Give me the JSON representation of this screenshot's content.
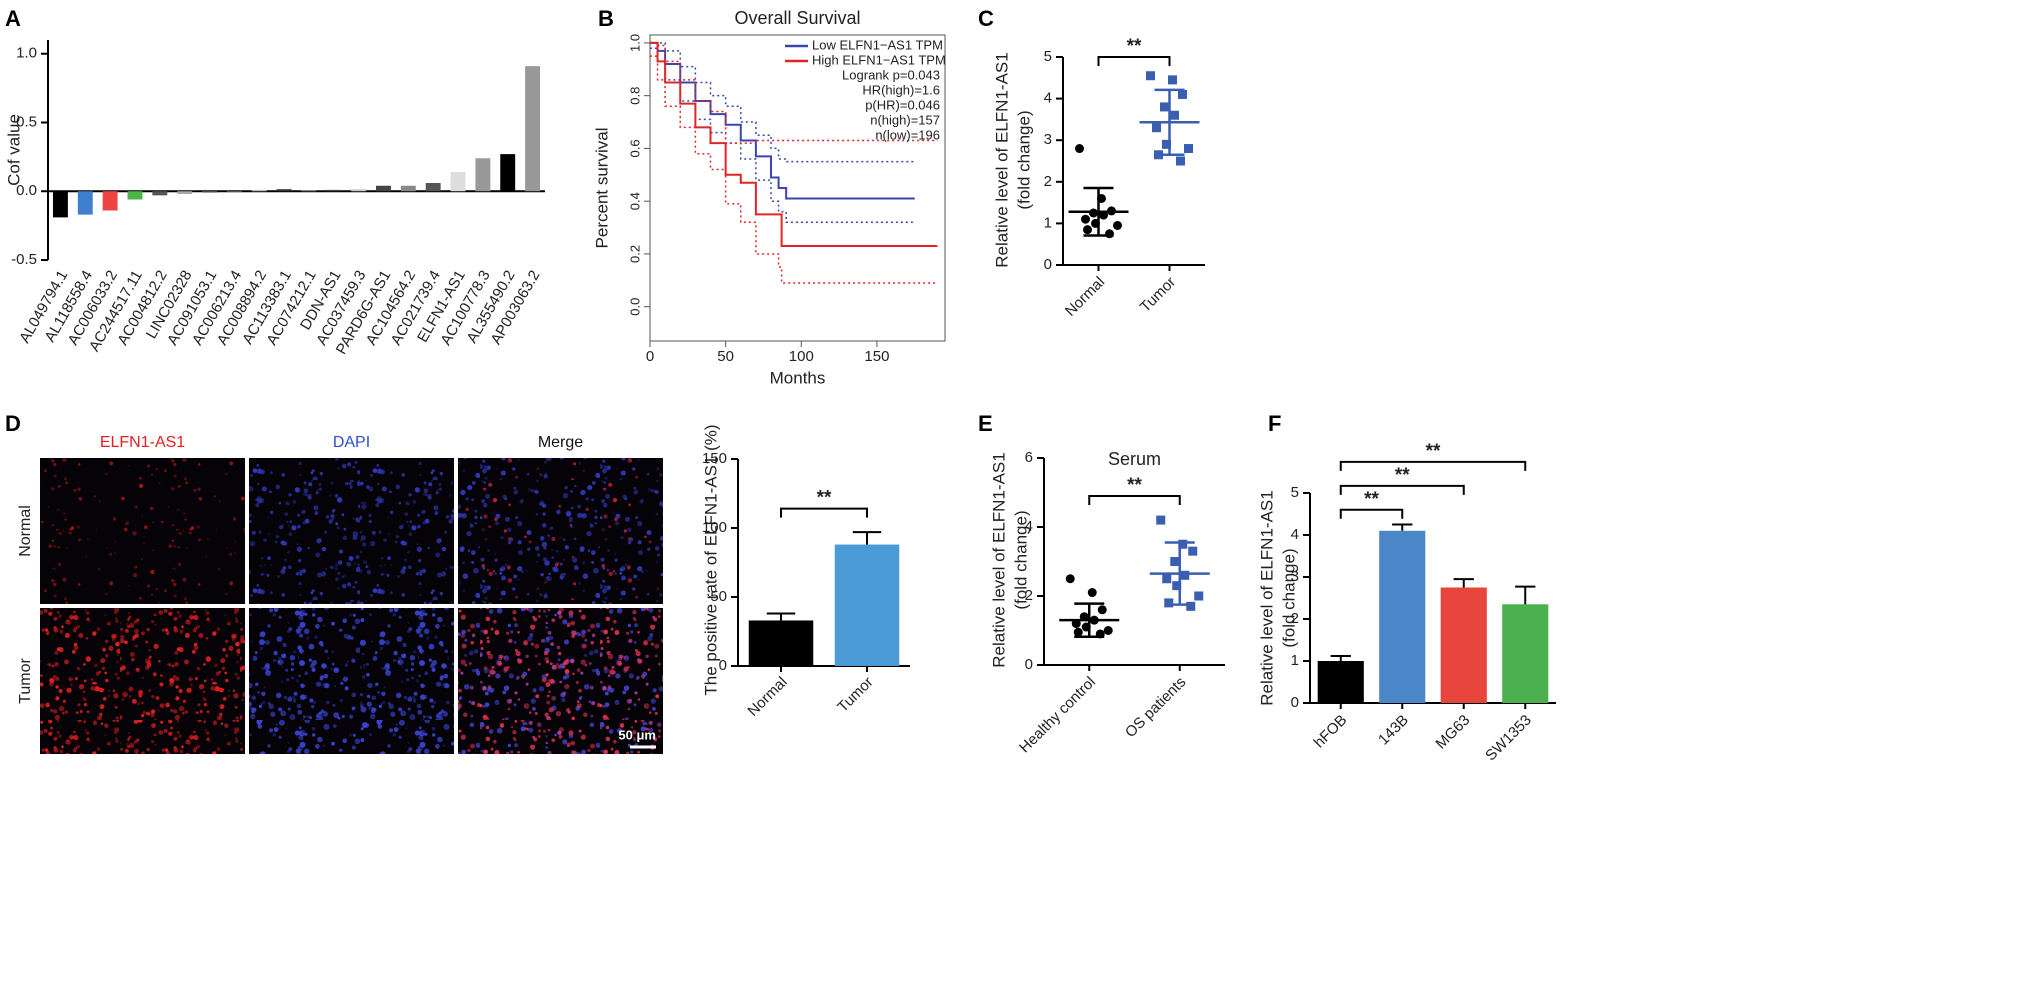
{
  "chart_data": [
    {
      "panel": "A",
      "type": "bar",
      "ylabel": "Cof value",
      "categories": [
        "AL049794.1",
        "AL118558.4",
        "AC006033.2",
        "AC244517.11",
        "AC004812.2",
        "LINC02328",
        "AC091053.1",
        "AC006213.4",
        "AC008894.2",
        "AC113383.1",
        "AC074212.1",
        "DDN-AS1",
        "AC037459.3",
        "PARD6G-AS1",
        "AC104564.2",
        "AC021739.4",
        "ELFN1-AS1",
        "AC100778.3",
        "AL355490.2",
        "AP003063.2"
      ],
      "values": [
        -0.19,
        -0.17,
        -0.14,
        -0.06,
        -0.03,
        -0.02,
        -0.01,
        -0.005,
        0.01,
        0.015,
        0.005,
        0.01,
        0.015,
        0.04,
        0.04,
        0.06,
        0.14,
        0.24,
        0.27,
        0.91
      ],
      "colors": [
        "#000000",
        "#3f7fd0",
        "#ef4444",
        "#4bb44b",
        "#555555",
        "#aaaaaa",
        "#666666",
        "#777777",
        "#bbbbbb",
        "#333333",
        "#999999",
        "#444444",
        "#cccccc",
        "#444444",
        "#888888",
        "#555555",
        "#dddddd",
        "#999999",
        "#000000",
        "#999999"
      ],
      "ylim": [
        -0.5,
        1.1
      ],
      "yticks": [
        -0.5,
        {
          "value": 0,
          "label": "0.0"
        },
        0.5,
        {
          "value": 1,
          "label": "1.0"
        }
      ]
    },
    {
      "panel": "B",
      "type": "line",
      "title": "Overall Survival",
      "xlabel": "Months",
      "ylabel": "Percent survival",
      "xlim": [
        0,
        195
      ],
      "ylim": [
        -0.13,
        1.03
      ],
      "xticks": [
        0,
        50,
        100,
        150
      ],
      "yticks": [
        {
          "value": 0,
          "label": "0.0"
        },
        0.2,
        0.4,
        0.6,
        0.8,
        {
          "value": 1,
          "label": "1.0"
        }
      ],
      "series": [
        {
          "name": "Low ELFN1−AS1 TPM",
          "color": "#3a45b0",
          "x": [
            0,
            5,
            10,
            20,
            30,
            40,
            50,
            60,
            70,
            80,
            85,
            90,
            175
          ],
          "values": [
            1,
            0.97,
            0.92,
            0.85,
            0.78,
            0.73,
            0.69,
            0.63,
            0.57,
            0.49,
            0.45,
            0.41,
            0.41
          ],
          "lower": [
            0.98,
            0.93,
            0.86,
            0.78,
            0.71,
            0.66,
            0.62,
            0.56,
            0.48,
            0.4,
            0.36,
            0.32,
            0.32
          ],
          "upper": [
            1,
            1,
            0.97,
            0.91,
            0.85,
            0.8,
            0.76,
            0.7,
            0.65,
            0.6,
            0.56,
            0.55,
            0.55
          ]
        },
        {
          "name": "High ELFN1−AS1 TPM",
          "color": "#e02525",
          "x": [
            0,
            5,
            10,
            20,
            30,
            40,
            50,
            60,
            70,
            85,
            87,
            190
          ],
          "values": [
            1,
            0.93,
            0.85,
            0.77,
            0.68,
            0.62,
            0.5,
            0.47,
            0.35,
            0.35,
            0.23,
            0.23
          ],
          "lower": [
            0.95,
            0.86,
            0.76,
            0.68,
            0.58,
            0.52,
            0.39,
            0.32,
            0.2,
            0.15,
            0.09,
            0.09
          ],
          "upper": [
            1,
            0.99,
            0.93,
            0.86,
            0.78,
            0.74,
            0.62,
            0.62,
            0.63,
            0.63,
            0.63,
            0.63
          ]
        }
      ],
      "annotations": [
        "Logrank p=0.043",
        "HR(high)=1.6",
        "p(HR)=0.046",
        "n(high)=157",
        "n(low)=196"
      ]
    },
    {
      "panel": "C",
      "type": "dotplot",
      "ylabel": [
        "Relative level of ELFN1-AS1",
        "(fold change)"
      ],
      "categories": [
        "Normal",
        "Tumor"
      ],
      "colors": [
        "#000000",
        "#3a5fb0"
      ],
      "markers": [
        "circle",
        "square"
      ],
      "points": [
        [
          2.8,
          1.6,
          1.3,
          1.25,
          1.2,
          1.1,
          1.0,
          0.95,
          0.85,
          0.75
        ],
        [
          4.55,
          4.45,
          4.1,
          3.8,
          3.6,
          3.3,
          2.9,
          2.8,
          2.65,
          2.5
        ]
      ],
      "mean": [
        1.28,
        3.43
      ],
      "sd": [
        0.57,
        0.78
      ],
      "ylim": [
        0,
        5
      ],
      "yticks": [
        0,
        1,
        2,
        3,
        4,
        5
      ],
      "significance": [
        {
          "from": "Normal",
          "to": "Tumor",
          "label": "**",
          "y": 5
        }
      ]
    },
    {
      "panel": "D",
      "type": "image",
      "columns": [
        "ELFN1-AS1",
        "DAPI",
        "Merge"
      ],
      "rows": [
        "Normal",
        "Tumor"
      ],
      "scale_bar": "50 μm"
    },
    {
      "type": "bar",
      "ylabel": "The positive rate of ELFN1-AS1 (%)",
      "categories": [
        "Normal",
        "Tumor"
      ],
      "values": [
        33,
        88
      ],
      "errors": [
        5,
        9
      ],
      "colors": [
        "#000000",
        "#4a9ad6"
      ],
      "ylim": [
        0,
        150
      ],
      "yticks": [
        0,
        50,
        100,
        150
      ],
      "significance": [
        {
          "from": "Normal",
          "to": "Tumor",
          "label": "**",
          "y": 114
        }
      ]
    },
    {
      "panel": "E",
      "type": "dotplot",
      "title": "Serum",
      "ylabel": [
        "Relative level of ELFN1-AS1",
        "(fold change)"
      ],
      "categories": [
        "Healthy control",
        "OS patients"
      ],
      "colors": [
        "#000000",
        "#3a5fb0"
      ],
      "markers": [
        "circle",
        "square"
      ],
      "points": [
        [
          2.5,
          2.1,
          1.6,
          1.4,
          1.3,
          1.2,
          1.1,
          1.0,
          0.95,
          0.9
        ],
        [
          4.2,
          3.5,
          3.3,
          3.0,
          2.6,
          2.5,
          2.3,
          2.0,
          1.8,
          1.7
        ]
      ],
      "mean": [
        1.3,
        2.65
      ],
      "sd": [
        0.48,
        0.9
      ],
      "ylim": [
        0,
        6
      ],
      "yticks": [
        0,
        2,
        4,
        6
      ],
      "significance": [
        {
          "from": "Healthy control",
          "to": "OS patients",
          "label": "**",
          "y": 4.9
        }
      ]
    },
    {
      "panel": "F",
      "type": "bar",
      "ylabel": [
        "Relative level of ELFN1-AS1",
        "(fold change)"
      ],
      "categories": [
        "hFOB",
        "143B",
        "MG63",
        "SW1353"
      ],
      "values": [
        1.0,
        4.1,
        2.75,
        2.35
      ],
      "errors": [
        0.12,
        0.15,
        0.2,
        0.42
      ],
      "colors": [
        "#000000",
        "#4a86c8",
        "#e8453c",
        "#4caf50"
      ],
      "ylim": [
        0,
        5
      ],
      "yticks": [
        0,
        1,
        2,
        3,
        4,
        5
      ],
      "significance": [
        {
          "from": "hFOB",
          "to": "143B",
          "label": "**",
          "y": 4.6
        },
        {
          "from": "hFOB",
          "to": "MG63",
          "label": "**",
          "y": 5.17
        },
        {
          "from": "hFOB",
          "to": "SW1353",
          "label": "**",
          "y": 5.74
        }
      ]
    }
  ]
}
